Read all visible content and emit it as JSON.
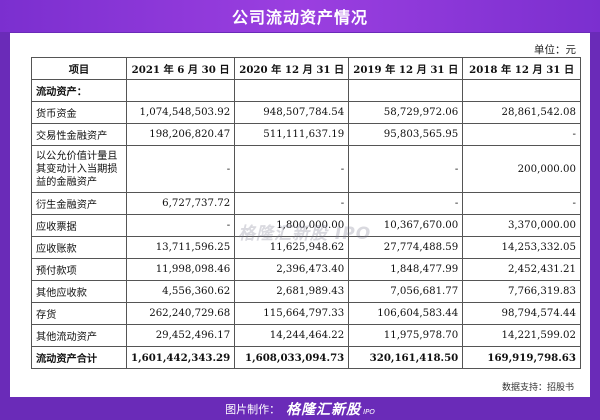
{
  "title": "公司流动资产情况",
  "unit": "单位：元",
  "table": {
    "headers": [
      "项目",
      "2021 年 6 月 30 日",
      "2020 年 12 月 31 日",
      "2019 年 12 月 31 日",
      "2018 年 12 月 31 日"
    ],
    "section": "流动资产：",
    "rows": [
      {
        "label": "货币资金",
        "v1": "1,074,548,503.92",
        "v2": "948,507,784.54",
        "v3": "58,729,972.06",
        "v4": "28,861,542.08"
      },
      {
        "label": "交易性金融资产",
        "v1": "198,206,820.47",
        "v2": "511,111,637.19",
        "v3": "95,803,565.95",
        "v4": "-"
      },
      {
        "label": "以公允价值计量且其变动计入当期损益的金融资产",
        "v1": "-",
        "v2": "-",
        "v3": "-",
        "v4": "200,000.00"
      },
      {
        "label": "衍生金融资产",
        "v1": "6,727,737.72",
        "v2": "-",
        "v3": "-",
        "v4": "-"
      },
      {
        "label": "应收票据",
        "v1": "-",
        "v2": "1,800,000.00",
        "v3": "10,367,670.00",
        "v4": "3,370,000.00"
      },
      {
        "label": "应收账款",
        "v1": "13,711,596.25",
        "v2": "11,625,948.62",
        "v3": "27,774,488.59",
        "v4": "14,253,332.05"
      },
      {
        "label": "预付款项",
        "v1": "11,998,098.46",
        "v2": "2,396,473.40",
        "v3": "1,848,477.99",
        "v4": "2,452,431.21"
      },
      {
        "label": "其他应收款",
        "v1": "4,556,360.62",
        "v2": "2,681,989.43",
        "v3": "7,056,681.77",
        "v4": "7,766,319.83"
      },
      {
        "label": "存货",
        "v1": "262,240,729.68",
        "v2": "115,664,797.33",
        "v3": "106,604,583.44",
        "v4": "98,794,574.44"
      },
      {
        "label": "其他流动资产",
        "v1": "29,452,496.17",
        "v2": "14,244,464.22",
        "v3": "11,975,978.70",
        "v4": "14,221,599.02"
      }
    ],
    "total": {
      "label": "流动资产合计",
      "v1": "1,601,442,343.29",
      "v2": "1,608,033,094.73",
      "v3": "320,161,418.50",
      "v4": "169,919,798.63"
    }
  },
  "watermark": "格隆汇新股 IPO",
  "source": "数据支持：招股书",
  "footer": {
    "prefix": "图片制作：",
    "brand": "格隆汇新股",
    "ipo": "IPO"
  },
  "colors": {
    "background": "#6a2bb8",
    "title_bar": "#8a36d8",
    "card": "#ffffff",
    "border": "#555555"
  }
}
